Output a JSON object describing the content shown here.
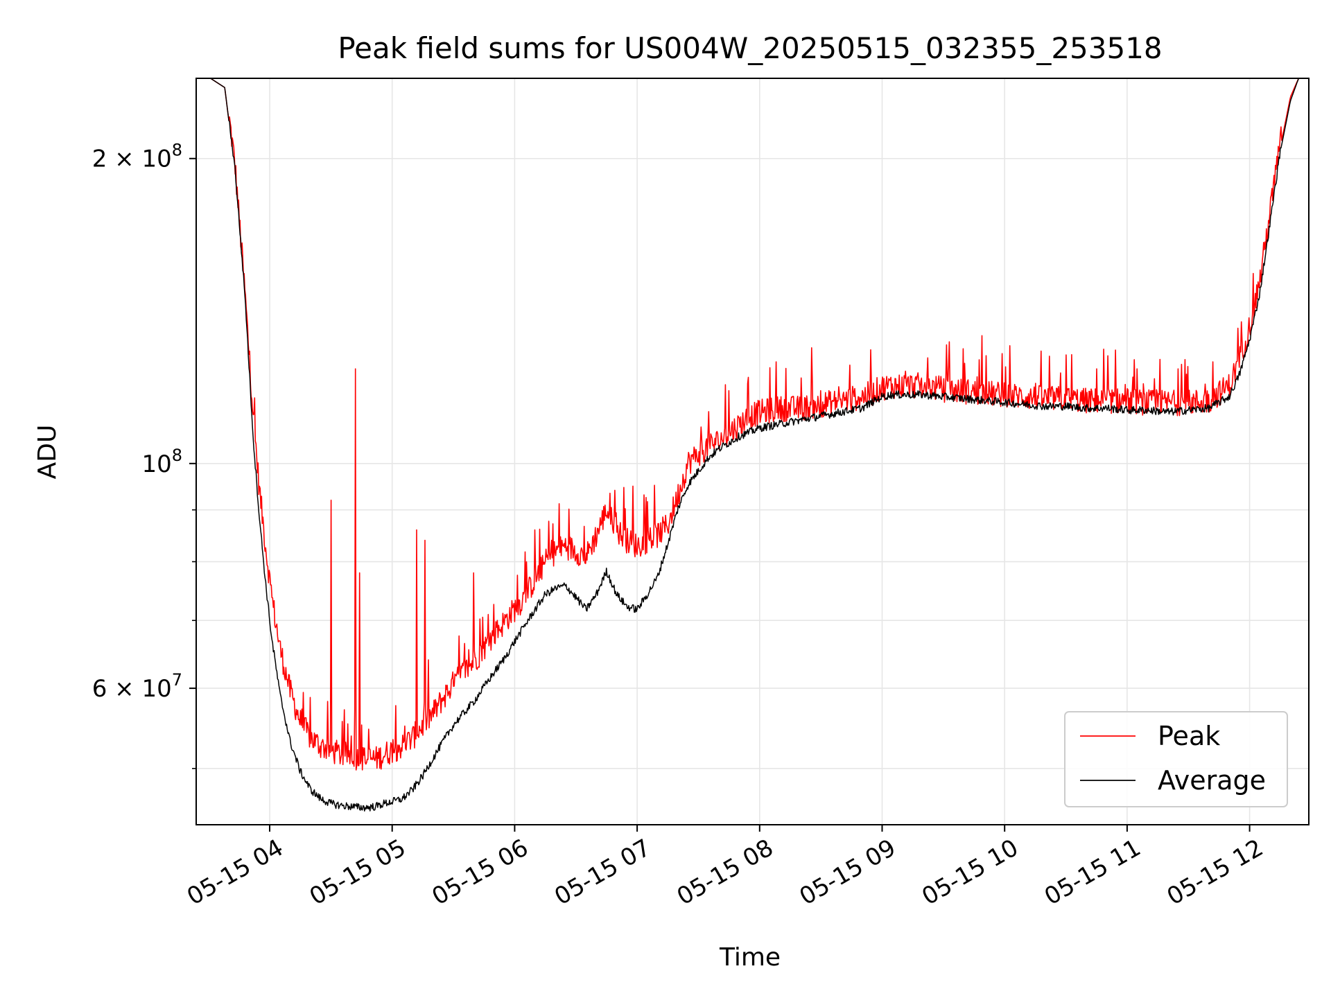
{
  "chart_data": {
    "type": "line",
    "title": "Peak field sums for US004W_20250515_032355_253518",
    "xlabel": "Time",
    "ylabel": "ADU",
    "y_scale": "log",
    "grid": true,
    "legend_position": "bottom-right",
    "xlim": [
      "2025-05-15 03:24",
      "2025-05-15 12:29"
    ],
    "ylim": [
      44000000,
      240000000
    ],
    "x_ticks": [
      {
        "value": "2025-05-15 04:00",
        "label": "05-15 04"
      },
      {
        "value": "2025-05-15 05:00",
        "label": "05-15 05"
      },
      {
        "value": "2025-05-15 06:00",
        "label": "05-15 06"
      },
      {
        "value": "2025-05-15 07:00",
        "label": "05-15 07"
      },
      {
        "value": "2025-05-15 08:00",
        "label": "05-15 08"
      },
      {
        "value": "2025-05-15 09:00",
        "label": "05-15 09"
      },
      {
        "value": "2025-05-15 10:00",
        "label": "05-15 10"
      },
      {
        "value": "2025-05-15 11:00",
        "label": "05-15 11"
      },
      {
        "value": "2025-05-15 12:00",
        "label": "05-15 12"
      }
    ],
    "y_ticks_major": [
      {
        "value": 200000000,
        "base": "2 × 10",
        "exp": "8"
      },
      {
        "value": 100000000,
        "base": "10",
        "exp": "8"
      },
      {
        "value": 60000000,
        "base": "6 × 10",
        "exp": "7"
      }
    ],
    "y_ticks_minor": [
      50000000,
      70000000,
      80000000,
      90000000
    ],
    "series": [
      {
        "name": "Peak",
        "color": "#ff0000",
        "x": [
          "2025-05-15 03:24",
          "2025-05-15 03:31",
          "2025-05-15 03:38",
          "2025-05-15 03:43",
          "2025-05-15 03:48",
          "2025-05-15 03:52",
          "2025-05-15 03:55",
          "2025-05-15 03:58",
          "2025-05-15 04:01",
          "2025-05-15 04:05",
          "2025-05-15 04:10",
          "2025-05-15 04:15",
          "2025-05-15 04:20",
          "2025-05-15 04:25",
          "2025-05-15 04:30",
          "2025-05-15 04:35",
          "2025-05-15 04:40",
          "2025-05-15 04:44",
          "2025-05-15 04:48",
          "2025-05-15 04:52",
          "2025-05-15 04:56",
          "2025-05-15 05:00",
          "2025-05-15 05:05",
          "2025-05-15 05:10",
          "2025-05-15 05:15",
          "2025-05-15 05:20",
          "2025-05-15 05:25",
          "2025-05-15 05:30",
          "2025-05-15 05:35",
          "2025-05-15 05:40",
          "2025-05-15 05:45",
          "2025-05-15 05:50",
          "2025-05-15 05:55",
          "2025-05-15 06:00",
          "2025-05-15 06:05",
          "2025-05-15 06:10",
          "2025-05-15 06:15",
          "2025-05-15 06:20",
          "2025-05-15 06:25",
          "2025-05-15 06:30",
          "2025-05-15 06:35",
          "2025-05-15 06:40",
          "2025-05-15 06:45",
          "2025-05-15 06:50",
          "2025-05-15 06:55",
          "2025-05-15 07:00",
          "2025-05-15 07:05",
          "2025-05-15 07:10",
          "2025-05-15 07:15",
          "2025-05-15 07:20",
          "2025-05-15 07:25",
          "2025-05-15 07:30",
          "2025-05-15 07:35",
          "2025-05-15 07:40",
          "2025-05-15 07:45",
          "2025-05-15 07:50",
          "2025-05-15 07:55",
          "2025-05-15 08:00",
          "2025-05-15 08:10",
          "2025-05-15 08:20",
          "2025-05-15 08:30",
          "2025-05-15 08:40",
          "2025-05-15 08:50",
          "2025-05-15 08:55",
          "2025-05-15 09:00",
          "2025-05-15 09:05",
          "2025-05-15 09:10",
          "2025-05-15 09:20",
          "2025-05-15 09:30",
          "2025-05-15 09:40",
          "2025-05-15 09:50",
          "2025-05-15 10:00",
          "2025-05-15 10:10",
          "2025-05-15 10:20",
          "2025-05-15 10:30",
          "2025-05-15 10:40",
          "2025-05-15 10:50",
          "2025-05-15 11:00",
          "2025-05-15 11:10",
          "2025-05-15 11:20",
          "2025-05-15 11:30",
          "2025-05-15 11:40",
          "2025-05-15 11:50",
          "2025-05-15 11:55",
          "2025-05-15 12:00",
          "2025-05-15 12:05",
          "2025-05-15 12:10",
          "2025-05-15 12:15",
          "2025-05-15 12:20",
          "2025-05-15 12:24",
          "2025-05-15 12:29"
        ],
        "values": [
          240000000,
          240000000,
          235000000,
          195000000,
          145000000,
          110000000,
          93000000,
          82000000,
          73000000,
          65000000,
          59000000,
          55000000,
          53000000,
          52000000,
          51500000,
          51000000,
          51000000,
          50500000,
          50500000,
          50500000,
          51000000,
          51500000,
          52000000,
          53000000,
          54500000,
          56000000,
          58000000,
          60000000,
          61500000,
          63000000,
          65000000,
          67000000,
          69000000,
          71000000,
          73000000,
          76000000,
          79000000,
          81000000,
          82000000,
          81000000,
          80000000,
          84000000,
          89000000,
          85000000,
          83000000,
          82000000,
          83000000,
          84000000,
          86000000,
          92000000,
          99000000,
          101000000,
          103000000,
          104000000,
          106000000,
          108000000,
          110000000,
          111000000,
          112000000,
          112000000,
          113000000,
          114000000,
          115000000,
          116000000,
          117500000,
          118000000,
          118000000,
          118000000,
          117000000,
          116500000,
          116000000,
          115500000,
          115000000,
          114500000,
          114500000,
          114000000,
          114000000,
          114000000,
          113500000,
          113500000,
          113500000,
          114000000,
          118000000,
          125000000,
          135000000,
          150000000,
          175000000,
          205000000,
          230000000,
          240000000,
          240000000
        ]
      },
      {
        "name": "Average",
        "color": "#000000",
        "x": [
          "2025-05-15 03:24",
          "2025-05-15 03:31",
          "2025-05-15 03:38",
          "2025-05-15 03:43",
          "2025-05-15 03:48",
          "2025-05-15 03:52",
          "2025-05-15 03:55",
          "2025-05-15 03:58",
          "2025-05-15 04:01",
          "2025-05-15 04:05",
          "2025-05-15 04:10",
          "2025-05-15 04:15",
          "2025-05-15 04:20",
          "2025-05-15 04:25",
          "2025-05-15 04:30",
          "2025-05-15 04:35",
          "2025-05-15 04:40",
          "2025-05-15 04:44",
          "2025-05-15 04:48",
          "2025-05-15 04:52",
          "2025-05-15 04:56",
          "2025-05-15 05:00",
          "2025-05-15 05:05",
          "2025-05-15 05:10",
          "2025-05-15 05:15",
          "2025-05-15 05:20",
          "2025-05-15 05:25",
          "2025-05-15 05:30",
          "2025-05-15 05:35",
          "2025-05-15 05:40",
          "2025-05-15 05:45",
          "2025-05-15 05:50",
          "2025-05-15 05:55",
          "2025-05-15 06:00",
          "2025-05-15 06:05",
          "2025-05-15 06:10",
          "2025-05-15 06:15",
          "2025-05-15 06:20",
          "2025-05-15 06:25",
          "2025-05-15 06:30",
          "2025-05-15 06:35",
          "2025-05-15 06:40",
          "2025-05-15 06:45",
          "2025-05-15 06:50",
          "2025-05-15 06:55",
          "2025-05-15 07:00",
          "2025-05-15 07:05",
          "2025-05-15 07:10",
          "2025-05-15 07:15",
          "2025-05-15 07:20",
          "2025-05-15 07:25",
          "2025-05-15 07:30",
          "2025-05-15 07:35",
          "2025-05-15 07:40",
          "2025-05-15 07:45",
          "2025-05-15 07:50",
          "2025-05-15 07:55",
          "2025-05-15 08:00",
          "2025-05-15 08:10",
          "2025-05-15 08:20",
          "2025-05-15 08:30",
          "2025-05-15 08:40",
          "2025-05-15 08:50",
          "2025-05-15 08:55",
          "2025-05-15 09:00",
          "2025-05-15 09:05",
          "2025-05-15 09:10",
          "2025-05-15 09:20",
          "2025-05-15 09:30",
          "2025-05-15 09:40",
          "2025-05-15 09:50",
          "2025-05-15 10:00",
          "2025-05-15 10:10",
          "2025-05-15 10:20",
          "2025-05-15 10:30",
          "2025-05-15 10:40",
          "2025-05-15 10:50",
          "2025-05-15 11:00",
          "2025-05-15 11:10",
          "2025-05-15 11:20",
          "2025-05-15 11:30",
          "2025-05-15 11:40",
          "2025-05-15 11:50",
          "2025-05-15 11:55",
          "2025-05-15 12:00",
          "2025-05-15 12:05",
          "2025-05-15 12:10",
          "2025-05-15 12:15",
          "2025-05-15 12:20",
          "2025-05-15 12:24",
          "2025-05-15 12:29"
        ],
        "values": [
          240000000,
          240000000,
          235000000,
          195000000,
          145000000,
          105000000,
          88000000,
          76000000,
          67000000,
          59000000,
          53000000,
          49500000,
          47500000,
          46500000,
          46000000,
          45800000,
          45700000,
          45600000,
          45600000,
          45700000,
          46000000,
          46200000,
          46500000,
          47500000,
          49000000,
          51000000,
          53000000,
          55000000,
          56500000,
          58000000,
          60000000,
          62000000,
          64000000,
          66500000,
          69000000,
          71500000,
          74000000,
          75000000,
          75500000,
          73500000,
          71500000,
          74000000,
          78000000,
          74000000,
          72000000,
          71500000,
          74000000,
          77000000,
          83000000,
          90000000,
          95000000,
          98000000,
          101000000,
          103000000,
          104500000,
          106000000,
          107000000,
          108000000,
          109000000,
          110000000,
          111000000,
          112000000,
          113000000,
          114500000,
          116000000,
          116500000,
          116500000,
          116500000,
          116000000,
          115500000,
          115000000,
          114500000,
          114000000,
          113500000,
          113500000,
          113000000,
          113000000,
          112500000,
          112500000,
          112000000,
          112500000,
          113000000,
          116000000,
          122000000,
          132000000,
          147000000,
          172000000,
          203000000,
          228000000,
          240000000,
          240000000
        ]
      }
    ],
    "spikes": [
      {
        "x": "2025-05-15 04:30",
        "value": 92000000
      },
      {
        "x": "2025-05-15 04:42",
        "value": 124000000
      },
      {
        "x": "2025-05-15 04:44",
        "value": 78000000
      },
      {
        "x": "2025-05-15 05:12",
        "value": 86000000
      },
      {
        "x": "2025-05-15 05:16",
        "value": 84000000
      },
      {
        "x": "2025-05-15 05:40",
        "value": 78000000
      },
      {
        "x": "2025-05-15 06:10",
        "value": 86000000
      },
      {
        "x": "2025-05-15 06:58",
        "value": 95000000
      },
      {
        "x": "2025-05-15 07:45",
        "value": 118000000
      },
      {
        "x": "2025-05-15 08:30",
        "value": 118000000
      },
      {
        "x": "2025-05-15 09:00",
        "value": 120000000
      },
      {
        "x": "2025-05-15 09:20",
        "value": 118000000
      },
      {
        "x": "2025-05-15 10:15",
        "value": 120000000
      },
      {
        "x": "2025-05-15 10:30",
        "value": 128000000
      },
      {
        "x": "2025-05-15 10:45",
        "value": 124000000
      },
      {
        "x": "2025-05-15 11:05",
        "value": 124000000
      },
      {
        "x": "2025-05-15 11:25",
        "value": 124000000
      },
      {
        "x": "2025-05-15 11:42",
        "value": 126000000
      },
      {
        "x": "2025-05-15 11:56",
        "value": 138000000
      }
    ]
  }
}
